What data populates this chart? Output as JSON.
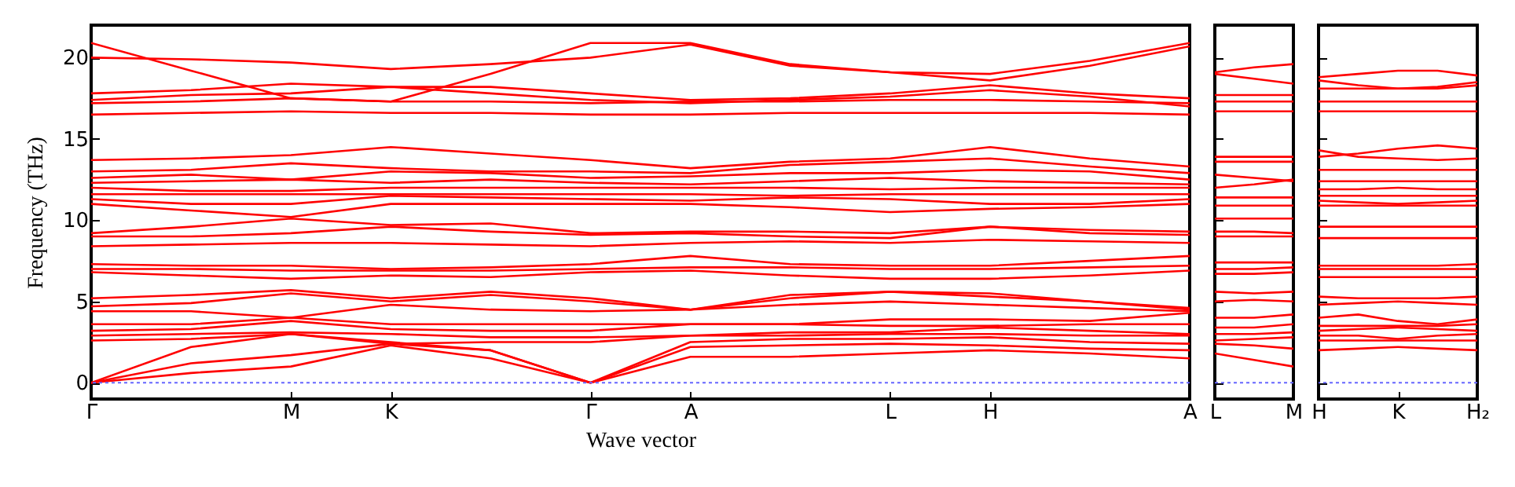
{
  "chart_data": [
    {
      "type": "line",
      "xlabel": "Wave vector",
      "ylabel": "Frequency (THz)",
      "ylim": [
        -1,
        22
      ],
      "yticks": [
        0,
        5,
        10,
        15,
        20
      ],
      "categories": [
        "Γ",
        null,
        "M",
        "K",
        null,
        "Γ",
        "A",
        null,
        "L",
        "H",
        null,
        "A"
      ],
      "ref_lines": [
        {
          "axis": "y",
          "value": 0,
          "color": "#6666ff",
          "line_style": "dotted"
        }
      ],
      "series": [
        {
          "color": "#ff0000",
          "values": [
            0,
            0.6,
            1.0,
            2.3,
            1.5,
            0,
            1.6,
            1.6,
            1.8,
            2.0,
            1.8,
            1.5
          ]
        },
        {
          "color": "#ff0000",
          "values": [
            0,
            1.2,
            1.7,
            2.4,
            2.0,
            0,
            2.2,
            2.3,
            2.4,
            2.3,
            2.1,
            2.0
          ]
        },
        {
          "color": "#ff0000",
          "values": [
            0,
            2.2,
            3.0,
            2.5,
            2.0,
            0,
            2.5,
            2.7,
            2.7,
            2.8,
            2.5,
            2.4
          ]
        },
        {
          "color": "#ff0000",
          "values": [
            2.6,
            2.7,
            3.0,
            2.4,
            2.5,
            2.5,
            2.9,
            2.9,
            3.0,
            3.0,
            2.9,
            2.9
          ]
        },
        {
          "color": "#ff0000",
          "values": [
            2.9,
            3.0,
            3.1,
            3.0,
            2.8,
            2.8,
            2.9,
            3.1,
            3.1,
            3.4,
            3.2,
            3.0
          ]
        },
        {
          "color": "#ff0000",
          "values": [
            3.2,
            3.3,
            3.8,
            3.3,
            3.2,
            3.2,
            3.6,
            3.6,
            3.5,
            3.5,
            3.6,
            3.6
          ]
        },
        {
          "color": "#ff0000",
          "values": [
            3.6,
            3.6,
            4.0,
            3.6,
            3.6,
            3.6,
            3.6,
            3.6,
            3.9,
            3.9,
            3.8,
            4.3
          ]
        },
        {
          "color": "#ff0000",
          "values": [
            4.4,
            4.4,
            4.0,
            4.8,
            4.5,
            4.4,
            4.5,
            4.8,
            5.0,
            4.8,
            4.6,
            4.4
          ]
        },
        {
          "color": "#ff0000",
          "values": [
            4.7,
            4.9,
            5.5,
            5.0,
            5.4,
            5.0,
            4.5,
            5.2,
            5.6,
            5.3,
            5.0,
            4.5
          ]
        },
        {
          "color": "#ff0000",
          "values": [
            5.2,
            5.4,
            5.7,
            5.2,
            5.6,
            5.2,
            4.5,
            5.4,
            5.6,
            5.5,
            5.0,
            4.6
          ]
        },
        {
          "color": "#ff0000",
          "values": [
            6.8,
            6.6,
            6.4,
            6.6,
            6.5,
            6.8,
            6.9,
            6.6,
            6.4,
            6.4,
            6.6,
            6.9
          ]
        },
        {
          "color": "#ff0000",
          "values": [
            7.0,
            7.0,
            6.9,
            6.9,
            6.9,
            7.0,
            7.1,
            7.1,
            7.0,
            7.0,
            7.1,
            7.2
          ]
        },
        {
          "color": "#ff0000",
          "values": [
            7.3,
            7.2,
            7.2,
            7.0,
            7.1,
            7.3,
            7.8,
            7.3,
            7.2,
            7.2,
            7.5,
            7.8
          ]
        },
        {
          "color": "#ff0000",
          "values": [
            8.4,
            8.5,
            8.6,
            8.6,
            8.5,
            8.4,
            8.6,
            8.7,
            8.6,
            8.8,
            8.7,
            8.6
          ]
        },
        {
          "color": "#ff0000",
          "values": [
            9.0,
            9.0,
            9.2,
            9.6,
            9.3,
            9.1,
            9.2,
            9.0,
            8.9,
            9.6,
            9.2,
            9.1
          ]
        },
        {
          "color": "#ff0000",
          "values": [
            9.2,
            9.6,
            10.1,
            9.7,
            9.8,
            9.2,
            9.3,
            9.3,
            9.2,
            9.6,
            9.4,
            9.3
          ]
        },
        {
          "color": "#ff0000",
          "values": [
            11.0,
            10.6,
            10.2,
            11.0,
            11.0,
            11.0,
            11.0,
            10.8,
            10.5,
            10.7,
            10.8,
            11.0
          ]
        },
        {
          "color": "#ff0000",
          "values": [
            11.3,
            11.0,
            11.0,
            11.5,
            11.4,
            11.3,
            11.2,
            11.4,
            11.3,
            11.0,
            11.0,
            11.3
          ]
        },
        {
          "color": "#ff0000",
          "values": [
            11.6,
            11.6,
            11.6,
            11.6,
            11.6,
            11.6,
            11.6,
            11.5,
            11.6,
            11.6,
            11.6,
            11.6
          ]
        },
        {
          "color": "#ff0000",
          "values": [
            12.0,
            11.8,
            11.8,
            12.0,
            12.0,
            12.0,
            12.0,
            12.0,
            11.9,
            12.0,
            12.0,
            12.0
          ]
        },
        {
          "color": "#ff0000",
          "values": [
            12.3,
            12.4,
            12.5,
            12.3,
            12.5,
            12.3,
            12.2,
            12.4,
            12.6,
            12.4,
            12.3,
            12.2
          ]
        },
        {
          "color": "#ff0000",
          "values": [
            12.6,
            12.8,
            12.5,
            13.0,
            12.9,
            12.6,
            12.7,
            12.9,
            12.9,
            13.1,
            13.0,
            12.5
          ]
        },
        {
          "color": "#ff0000",
          "values": [
            13.0,
            13.1,
            13.5,
            13.2,
            13.0,
            13.0,
            12.9,
            13.4,
            13.6,
            13.8,
            13.3,
            12.9
          ]
        },
        {
          "color": "#ff0000",
          "values": [
            13.7,
            13.8,
            14.0,
            14.5,
            14.1,
            13.7,
            13.2,
            13.6,
            13.8,
            14.5,
            13.8,
            13.3
          ]
        },
        {
          "color": "#ff0000",
          "values": [
            16.5,
            16.6,
            16.7,
            16.6,
            16.6,
            16.5,
            16.5,
            16.6,
            16.6,
            16.6,
            16.6,
            16.5
          ]
        },
        {
          "color": "#ff0000",
          "values": [
            17.2,
            17.3,
            17.5,
            17.3,
            17.3,
            17.2,
            17.3,
            17.3,
            17.4,
            17.4,
            17.3,
            17.2
          ]
        },
        {
          "color": "#ff0000",
          "values": [
            17.4,
            17.7,
            17.8,
            18.2,
            17.8,
            17.4,
            17.2,
            17.4,
            17.6,
            18.0,
            17.6,
            17.0
          ]
        },
        {
          "color": "#ff0000",
          "values": [
            17.8,
            18.0,
            18.4,
            18.2,
            18.2,
            17.8,
            17.4,
            17.5,
            17.8,
            18.3,
            17.8,
            17.5
          ]
        },
        {
          "color": "#ff0000",
          "values": [
            20.9,
            19.2,
            17.5,
            17.3,
            19.0,
            20.9,
            20.9,
            19.6,
            19.1,
            19.0,
            19.8,
            20.9
          ]
        },
        {
          "color": "#ff0000",
          "values": [
            20.0,
            19.9,
            19.7,
            19.3,
            19.6,
            20.0,
            20.8,
            19.5,
            19.1,
            18.6,
            19.5,
            20.7
          ]
        }
      ]
    },
    {
      "type": "line",
      "tick_labels": "x",
      "ylim": [
        -1,
        22
      ],
      "yticks": [
        0,
        5,
        10,
        15,
        20
      ],
      "categories": [
        "L",
        null,
        "M"
      ],
      "ref_lines": [
        {
          "axis": "y",
          "value": 0,
          "color": "#6666ff",
          "line_style": "dotted"
        }
      ],
      "series": [
        {
          "color": "#ff0000",
          "values": [
            1.8,
            1.4,
            1.0
          ]
        },
        {
          "color": "#ff0000",
          "values": [
            2.4,
            2.3,
            2.1
          ]
        },
        {
          "color": "#ff0000",
          "values": [
            2.6,
            2.7,
            2.8
          ]
        },
        {
          "color": "#ff0000",
          "values": [
            3.0,
            3.0,
            3.1
          ]
        },
        {
          "color": "#ff0000",
          "values": [
            3.4,
            3.4,
            3.6
          ]
        },
        {
          "color": "#ff0000",
          "values": [
            4.0,
            4.0,
            4.2
          ]
        },
        {
          "color": "#ff0000",
          "values": [
            5.0,
            5.1,
            5.0
          ]
        },
        {
          "color": "#ff0000",
          "values": [
            5.6,
            5.5,
            5.6
          ]
        },
        {
          "color": "#ff0000",
          "values": [
            6.7,
            6.7,
            6.8
          ]
        },
        {
          "color": "#ff0000",
          "values": [
            7.0,
            7.0,
            7.1
          ]
        },
        {
          "color": "#ff0000",
          "values": [
            7.4,
            7.4,
            7.4
          ]
        },
        {
          "color": "#ff0000",
          "values": [
            9.0,
            9.0,
            9.0
          ]
        },
        {
          "color": "#ff0000",
          "values": [
            9.3,
            9.3,
            9.2
          ]
        },
        {
          "color": "#ff0000",
          "values": [
            10.1,
            10.1,
            10.1
          ]
        },
        {
          "color": "#ff0000",
          "values": [
            10.9,
            10.9,
            10.9
          ]
        },
        {
          "color": "#ff0000",
          "values": [
            11.4,
            11.4,
            11.4
          ]
        },
        {
          "color": "#ff0000",
          "values": [
            12.0,
            12.2,
            12.5
          ]
        },
        {
          "color": "#ff0000",
          "values": [
            12.8,
            12.6,
            12.4
          ]
        },
        {
          "color": "#ff0000",
          "values": [
            13.6,
            13.6,
            13.6
          ]
        },
        {
          "color": "#ff0000",
          "values": [
            13.9,
            13.9,
            13.9
          ]
        },
        {
          "color": "#ff0000",
          "values": [
            16.7,
            16.7,
            16.7
          ]
        },
        {
          "color": "#ff0000",
          "values": [
            17.3,
            17.3,
            17.3
          ]
        },
        {
          "color": "#ff0000",
          "values": [
            17.7,
            17.7,
            17.7
          ]
        },
        {
          "color": "#ff0000",
          "values": [
            19.1,
            19.4,
            19.6
          ]
        },
        {
          "color": "#ff0000",
          "values": [
            19.0,
            18.7,
            18.4
          ]
        }
      ]
    },
    {
      "type": "line",
      "tick_labels": "x",
      "ylim": [
        -1,
        22
      ],
      "yticks": [
        0,
        5,
        10,
        15,
        20
      ],
      "categories": [
        "H",
        null,
        "K",
        null,
        "H₂"
      ],
      "ref_lines": [
        {
          "axis": "y",
          "value": 0,
          "color": "#6666ff",
          "line_style": "dotted"
        }
      ],
      "series": [
        {
          "color": "#ff0000",
          "values": [
            2.0,
            2.1,
            2.2,
            2.1,
            2.0
          ]
        },
        {
          "color": "#ff0000",
          "values": [
            2.6,
            2.6,
            2.6,
            2.6,
            2.6
          ]
        },
        {
          "color": "#ff0000",
          "values": [
            2.9,
            2.9,
            2.7,
            2.9,
            3.0
          ]
        },
        {
          "color": "#ff0000",
          "values": [
            3.2,
            3.3,
            3.4,
            3.3,
            3.2
          ]
        },
        {
          "color": "#ff0000",
          "values": [
            3.5,
            3.5,
            3.5,
            3.5,
            3.6
          ]
        },
        {
          "color": "#ff0000",
          "values": [
            4.0,
            4.2,
            3.8,
            3.6,
            3.9
          ]
        },
        {
          "color": "#ff0000",
          "values": [
            4.8,
            4.9,
            5.0,
            4.9,
            4.8
          ]
        },
        {
          "color": "#ff0000",
          "values": [
            5.3,
            5.2,
            5.2,
            5.2,
            5.3
          ]
        },
        {
          "color": "#ff0000",
          "values": [
            6.5,
            6.5,
            6.5,
            6.5,
            6.5
          ]
        },
        {
          "color": "#ff0000",
          "values": [
            7.0,
            7.0,
            7.0,
            7.0,
            7.0
          ]
        },
        {
          "color": "#ff0000",
          "values": [
            7.2,
            7.2,
            7.2,
            7.2,
            7.3
          ]
        },
        {
          "color": "#ff0000",
          "values": [
            8.9,
            8.9,
            8.9,
            8.9,
            8.9
          ]
        },
        {
          "color": "#ff0000",
          "values": [
            9.6,
            9.6,
            9.6,
            9.6,
            9.6
          ]
        },
        {
          "color": "#ff0000",
          "values": [
            10.9,
            10.9,
            10.9,
            10.9,
            10.9
          ]
        },
        {
          "color": "#ff0000",
          "values": [
            11.2,
            11.1,
            11.0,
            11.1,
            11.2
          ]
        },
        {
          "color": "#ff0000",
          "values": [
            11.5,
            11.5,
            11.5,
            11.5,
            11.5
          ]
        },
        {
          "color": "#ff0000",
          "values": [
            11.9,
            11.9,
            12.0,
            11.9,
            11.9
          ]
        },
        {
          "color": "#ff0000",
          "values": [
            12.4,
            12.4,
            12.4,
            12.4,
            12.4
          ]
        },
        {
          "color": "#ff0000",
          "values": [
            13.1,
            13.1,
            13.1,
            13.1,
            13.1
          ]
        },
        {
          "color": "#ff0000",
          "values": [
            13.9,
            14.1,
            14.4,
            14.6,
            14.4
          ]
        },
        {
          "color": "#ff0000",
          "values": [
            14.3,
            13.9,
            13.8,
            13.7,
            13.8
          ]
        },
        {
          "color": "#ff0000",
          "values": [
            16.7,
            16.7,
            16.7,
            16.7,
            16.7
          ]
        },
        {
          "color": "#ff0000",
          "values": [
            17.3,
            17.3,
            17.3,
            17.3,
            17.3
          ]
        },
        {
          "color": "#ff0000",
          "values": [
            18.1,
            18.1,
            18.1,
            18.1,
            18.3
          ]
        },
        {
          "color": "#ff0000",
          "values": [
            18.8,
            19.0,
            19.2,
            19.2,
            18.9
          ]
        },
        {
          "color": "#ff0000",
          "values": [
            18.6,
            18.3,
            18.1,
            18.2,
            18.5
          ]
        }
      ]
    }
  ]
}
